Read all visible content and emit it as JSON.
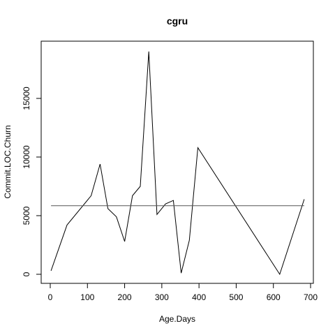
{
  "chart_data": {
    "type": "line",
    "title": "cgru",
    "xlabel": "Age.Days",
    "ylabel": "Commit.LOC.Churn",
    "xlim": [
      0,
      700
    ],
    "ylim": [
      0,
      17500
    ],
    "grid": false,
    "x_ticks": [
      0,
      100,
      200,
      300,
      400,
      500,
      600,
      700
    ],
    "y_ticks": [
      0,
      5000,
      10000,
      15000
    ],
    "series": [
      {
        "x": [
          2,
          45,
          110,
          134,
          155,
          178,
          200,
          221,
          242,
          265,
          287,
          310,
          331,
          352,
          374,
          397,
          617,
          683
        ],
        "y": [
          300,
          4200,
          6700,
          9400,
          5600,
          4900,
          2800,
          6700,
          7500,
          19000,
          5100,
          6000,
          6300,
          100,
          2900,
          10800,
          0,
          6400
        ],
        "color": "#000000"
      },
      {
        "x": [
          2,
          683
        ],
        "y": [
          5850,
          5850
        ],
        "color": "#555555"
      }
    ]
  }
}
